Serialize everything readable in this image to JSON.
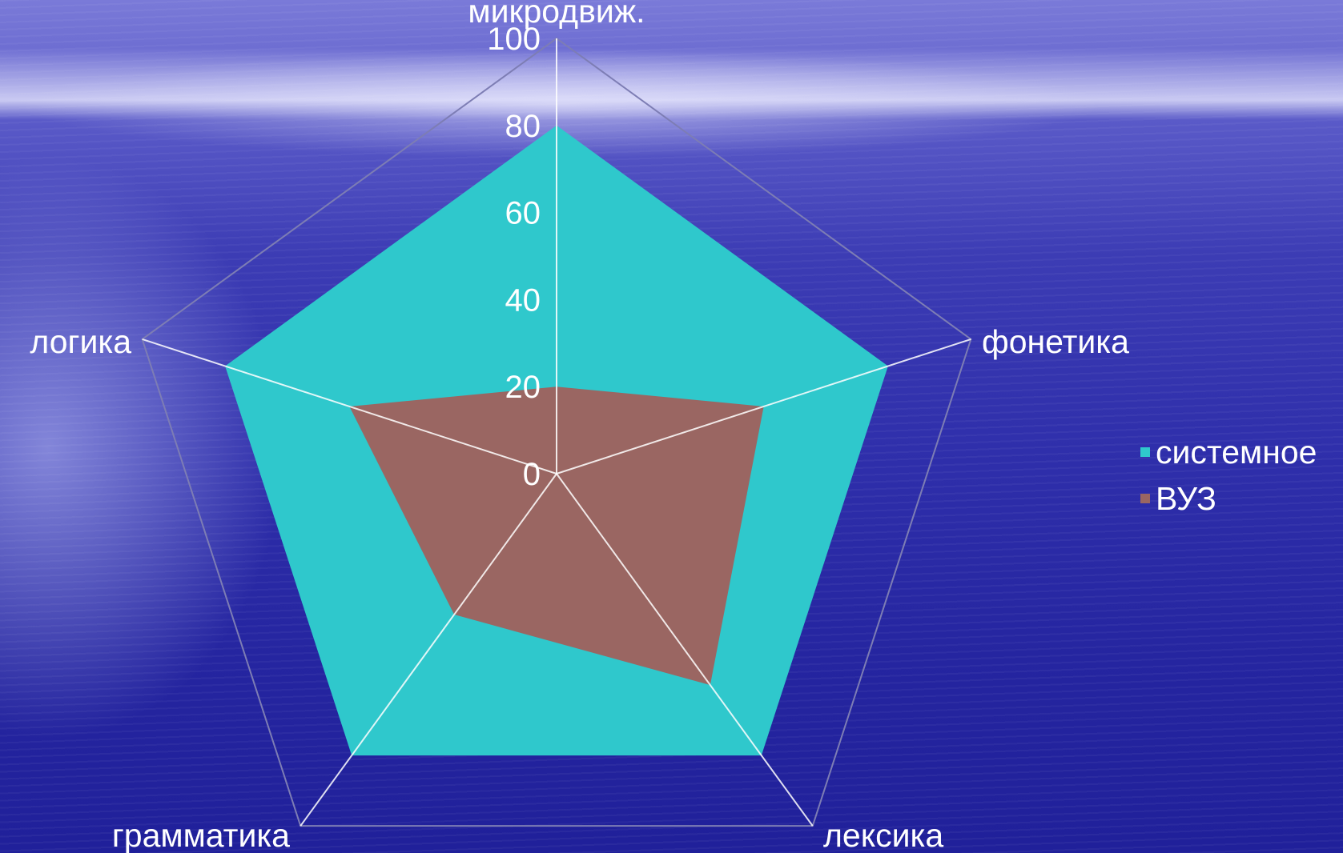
{
  "chart_data": {
    "type": "radar",
    "categories": [
      "микродвиж.",
      "фонетика",
      "лексика",
      "грамматика",
      "логика"
    ],
    "series": [
      {
        "name": "системное",
        "values": [
          80,
          80,
          80,
          80,
          80
        ],
        "color": "#2fc8cc"
      },
      {
        "name": "ВУЗ",
        "values": [
          20,
          50,
          60,
          40,
          50
        ],
        "color": "#9a6662"
      }
    ],
    "radial_ticks": [
      0,
      20,
      40,
      60,
      80,
      100
    ],
    "rlim": [
      0,
      100
    ],
    "legend_position": "right",
    "grid": "outer pentagon only",
    "axis_color": "#ffffff"
  }
}
